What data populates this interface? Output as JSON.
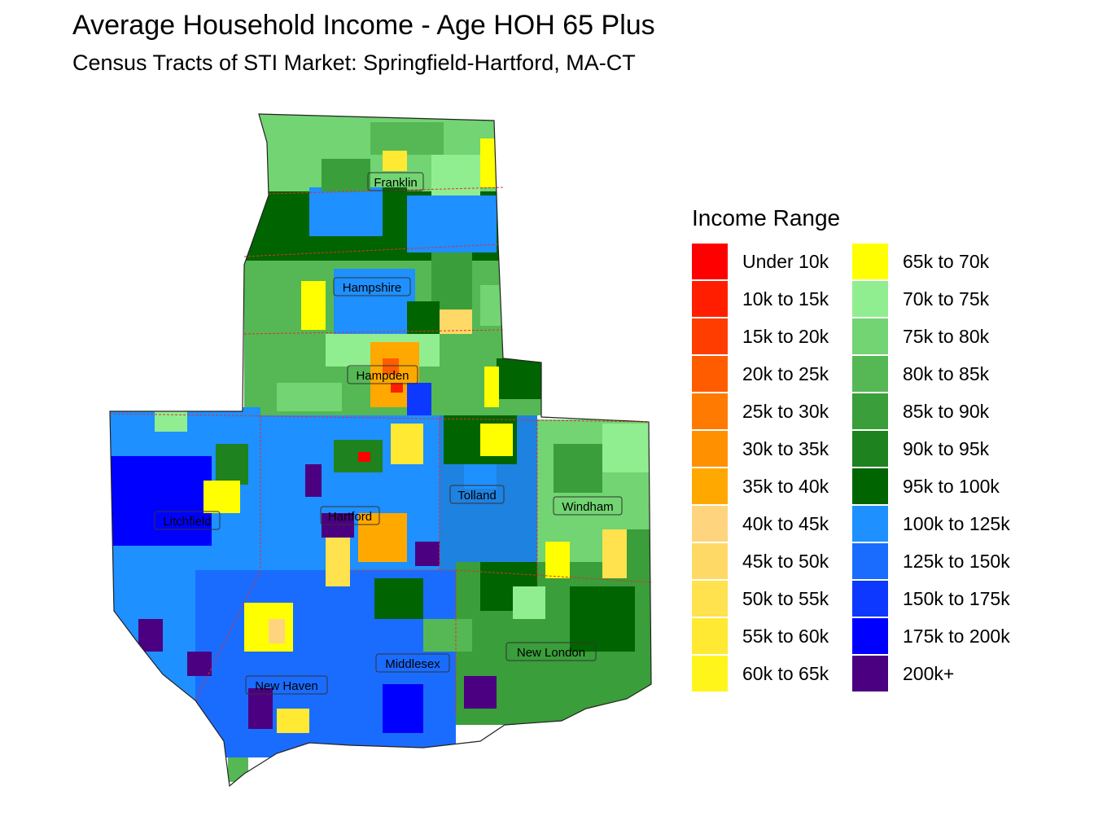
{
  "header": {
    "title": "Average Household Income - Age HOH 65 Plus",
    "subtitle": "Census Tracts of STI Market: Springfield-Hartford, MA-CT"
  },
  "legend": {
    "title": "Income Range",
    "items": [
      {
        "label": "Under 10k",
        "color": "#ff0000"
      },
      {
        "label": "10k to 15k",
        "color": "#ff1f00"
      },
      {
        "label": "15k to 20k",
        "color": "#ff3d00"
      },
      {
        "label": "20k to 25k",
        "color": "#ff5c00"
      },
      {
        "label": "25k to 30k",
        "color": "#ff7a00"
      },
      {
        "label": "30k to 35k",
        "color": "#ff9100"
      },
      {
        "label": "35k to 40k",
        "color": "#ffa800"
      },
      {
        "label": "40k to 45k",
        "color": "#ffd47f"
      },
      {
        "label": "45k to 50k",
        "color": "#ffd966"
      },
      {
        "label": "50k to 55k",
        "color": "#ffe24d"
      },
      {
        "label": "55k to 60k",
        "color": "#ffe933"
      },
      {
        "label": "60k to 65k",
        "color": "#fff51a"
      },
      {
        "label": "65k to 70k",
        "color": "#ffff00"
      },
      {
        "label": "70k to 75k",
        "color": "#90ee90"
      },
      {
        "label": "75k to 80k",
        "color": "#72d472"
      },
      {
        "label": "80k to 85k",
        "color": "#55b855"
      },
      {
        "label": "85k to 90k",
        "color": "#3a9e3a"
      },
      {
        "label": "90k to 95k",
        "color": "#1e821e"
      },
      {
        "label": "95k to 100k",
        "color": "#006400"
      },
      {
        "label": "100k to 125k",
        "color": "#1e90ff"
      },
      {
        "label": "125k to 150k",
        "color": "#1a6cff"
      },
      {
        "label": "150k to 175k",
        "color": "#0d38ff"
      },
      {
        "label": "175k to 200k",
        "color": "#0000ff"
      },
      {
        "label": "200k+",
        "color": "#4b0082"
      }
    ]
  },
  "map": {
    "counties": [
      {
        "name": "Franklin"
      },
      {
        "name": "Hampshire"
      },
      {
        "name": "Hampden"
      },
      {
        "name": "Litchfield"
      },
      {
        "name": "Hartford"
      },
      {
        "name": "Tolland"
      },
      {
        "name": "Windham"
      },
      {
        "name": "Middlesex"
      },
      {
        "name": "New London"
      },
      {
        "name": "New Haven"
      }
    ]
  }
}
